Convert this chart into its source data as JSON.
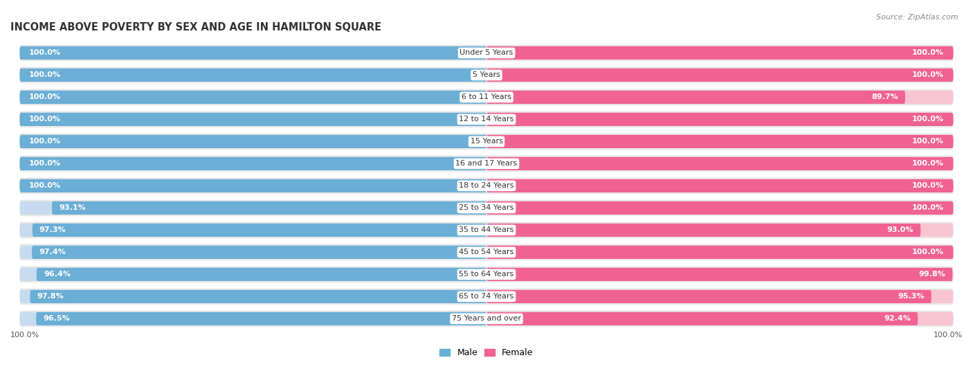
{
  "title": "INCOME ABOVE POVERTY BY SEX AND AGE IN HAMILTON SQUARE",
  "source": "Source: ZipAtlas.com",
  "categories": [
    "Under 5 Years",
    "5 Years",
    "6 to 11 Years",
    "12 to 14 Years",
    "15 Years",
    "16 and 17 Years",
    "18 to 24 Years",
    "25 to 34 Years",
    "35 to 44 Years",
    "45 to 54 Years",
    "55 to 64 Years",
    "65 to 74 Years",
    "75 Years and over"
  ],
  "male": [
    100.0,
    100.0,
    100.0,
    100.0,
    100.0,
    100.0,
    100.0,
    93.1,
    97.3,
    97.4,
    96.4,
    97.8,
    96.5
  ],
  "female": [
    100.0,
    100.0,
    89.7,
    100.0,
    100.0,
    100.0,
    100.0,
    100.0,
    93.0,
    100.0,
    99.8,
    95.3,
    92.4
  ],
  "male_color": "#6baed6",
  "female_color": "#f06292",
  "male_color_light": "#c6dbef",
  "female_color_light": "#f9c4d2",
  "row_bg_color": "#e8e8e8",
  "bar_height": 0.6,
  "bg_color": "#ffffff",
  "title_fontsize": 10.5,
  "label_fontsize": 8.0,
  "category_fontsize": 8.0,
  "legend_fontsize": 9,
  "bottom_label_male": "100.0%",
  "bottom_label_female": "100.0%",
  "x_max": 100
}
